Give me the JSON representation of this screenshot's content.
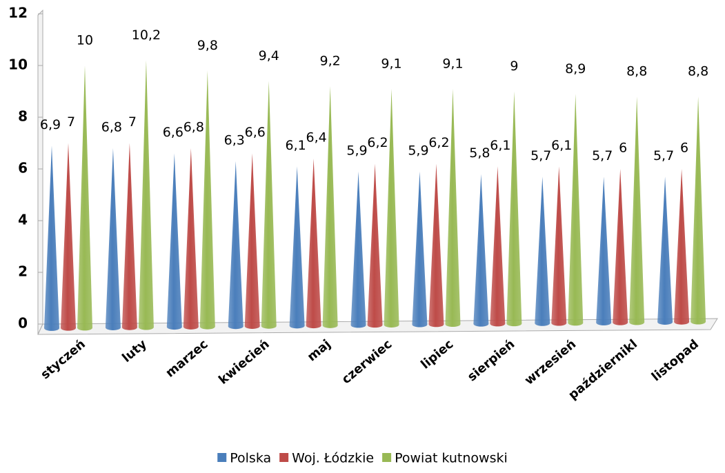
{
  "chart_data": {
    "type": "bar",
    "categories": [
      "styczeń",
      "luty",
      "marzec",
      "kwiecień",
      "maj",
      "czerwiec",
      "lipiec",
      "sierpień",
      "wrzesień",
      "październikl",
      "listopad"
    ],
    "series": [
      {
        "name": "Polska",
        "color": "#4a7ebb",
        "values": [
          6.9,
          6.8,
          6.6,
          6.3,
          6.1,
          5.9,
          5.9,
          5.8,
          5.7,
          5.7,
          5.7
        ],
        "value_labels": [
          "6,9",
          "6,8",
          "6,6",
          "6,3",
          "6,1",
          "5,9",
          "5,9",
          "5,8",
          "5,7",
          "5,7",
          "5,7"
        ]
      },
      {
        "name": "Woj. Łódzkie",
        "color": "#be4b48",
        "values": [
          7,
          7,
          6.8,
          6.6,
          6.4,
          6.2,
          6.2,
          6.1,
          6.1,
          6,
          6
        ],
        "value_labels": [
          "7",
          "7",
          "6,8",
          "6,6",
          "6,4",
          "6,2",
          "6,2",
          "6,1",
          "6,1",
          "6",
          "6"
        ]
      },
      {
        "name": "Powiat kutnowski",
        "color": "#98b954",
        "values": [
          10,
          10.2,
          9.8,
          9.4,
          9.2,
          9.1,
          9.1,
          9,
          8.9,
          8.8,
          8.8
        ],
        "value_labels": [
          "10",
          "10,2",
          "9,8",
          "9,4",
          "9,2",
          "9,1",
          "9,1",
          "9",
          "8,9",
          "8,8",
          "8,8"
        ]
      }
    ],
    "ylim": [
      0,
      12
    ],
    "yticks": [
      0,
      2,
      4,
      6,
      8,
      10,
      12
    ],
    "legend": "bottom"
  }
}
